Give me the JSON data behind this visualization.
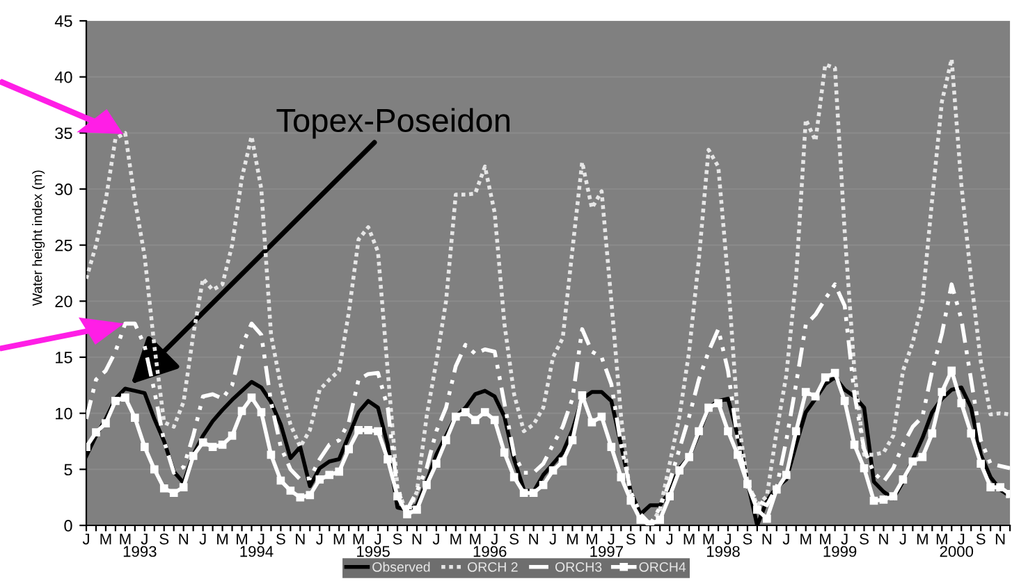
{
  "chart_data": {
    "type": "line",
    "ylabel": "Water height index (m)",
    "categories": [
      "J",
      null,
      "M",
      null,
      "M",
      null,
      "J",
      null,
      "S",
      null,
      "N",
      null,
      "J",
      null,
      "M",
      null,
      "M",
      null,
      "J",
      null,
      "S",
      null,
      "N",
      null,
      "J",
      null,
      "M",
      null,
      "M",
      null,
      "J",
      null,
      "S",
      null,
      "N",
      null,
      "J",
      null,
      "M",
      null,
      "M",
      null,
      "J",
      null,
      "S",
      null,
      "N",
      null,
      "J",
      null,
      "M",
      null,
      "M",
      null,
      "J",
      null,
      "S",
      null,
      "N",
      null,
      "J",
      null,
      "M",
      null,
      "M",
      null,
      "J",
      null,
      "S",
      null,
      "N",
      null,
      "J",
      null,
      "M",
      null,
      "M",
      null,
      "J",
      null,
      "S",
      null,
      "N",
      null,
      "J",
      null,
      "M",
      null,
      "M",
      null,
      "J",
      null,
      "S",
      null,
      "N",
      null
    ],
    "series": [
      {
        "name": "Observed",
        "color": "#000000",
        "line_style": "solid",
        "marker": "none",
        "values": [
          6.2,
          8,
          9.5,
          11.3,
          12.2,
          12,
          11.8,
          9.5,
          7.5,
          4.8,
          3.8,
          6.3,
          8,
          9.3,
          10.3,
          11.2,
          12,
          12.8,
          12.3,
          11,
          9,
          6,
          7,
          3.5,
          5.1,
          5.7,
          5.9,
          8,
          10.1,
          11.1,
          10.5,
          7.2,
          1.6,
          1.4,
          1.8,
          3.9,
          6.3,
          8,
          9.7,
          10.5,
          11.7,
          12,
          11.5,
          9.7,
          5.9,
          3.2,
          3,
          4.5,
          5.5,
          6.5,
          8.5,
          11.3,
          11.9,
          11.9,
          11.1,
          7.2,
          3,
          1,
          1.8,
          1.8,
          3,
          5.1,
          6.1,
          8.2,
          10.5,
          11.1,
          11.3,
          8,
          3.9,
          0,
          2.2,
          3.4,
          4.1,
          7.2,
          10.1,
          11.3,
          12.6,
          13.2,
          12.1,
          11.5,
          10.5,
          3.9,
          3,
          2.4,
          3.9,
          5.9,
          7.8,
          10.1,
          11.3,
          12.1,
          12.3,
          10.5,
          6.3,
          4.3,
          3.2,
          2.6
        ]
      },
      {
        "name": "ORCH 2",
        "color": "#e6e6e6",
        "line_style": "dotted",
        "marker": "none",
        "values": [
          22,
          25,
          29,
          34.5,
          35,
          29,
          24,
          16,
          9.2,
          8.8,
          11,
          17,
          22,
          21,
          21.5,
          25,
          31,
          34.7,
          30,
          17,
          12.5,
          9,
          7,
          8.5,
          12.1,
          13,
          13.8,
          19,
          25.5,
          26.6,
          24.4,
          13.8,
          3.4,
          0.9,
          3,
          9.7,
          14.6,
          20,
          29.5,
          29.5,
          29.6,
          32,
          27.9,
          18,
          11.7,
          8.4,
          9,
          10.5,
          15,
          16.7,
          24.6,
          32.4,
          28.3,
          29.8,
          20,
          9.7,
          2.2,
          0.5,
          0,
          1.4,
          5.5,
          9.7,
          15.5,
          23.7,
          33.5,
          32,
          22,
          9.7,
          3.9,
          1.8,
          2.6,
          8.4,
          13.4,
          22,
          36.2,
          34.3,
          41.1,
          40.8,
          26.2,
          13.8,
          6.3,
          6.3,
          6.5,
          8,
          13.8,
          16.3,
          20,
          29.1,
          37.8,
          41.6,
          30.4,
          22,
          14.6,
          9.9,
          10,
          9.9
        ]
      },
      {
        "name": "ORCH3",
        "color": "#ffffff",
        "line_style": "dashed",
        "marker": "none",
        "values": [
          9.5,
          13,
          13.8,
          15.5,
          18,
          18,
          16,
          12,
          7.5,
          4.7,
          5.2,
          8,
          11.5,
          11.7,
          11.3,
          12.5,
          16,
          18,
          17,
          11,
          7,
          5,
          4.1,
          4.2,
          5.9,
          7.2,
          7.6,
          9.2,
          13,
          13.5,
          13.6,
          10.5,
          3,
          1.4,
          3,
          5.1,
          8.4,
          10.5,
          14.2,
          16.1,
          15.3,
          15.7,
          15.5,
          10.9,
          6.3,
          4.7,
          4.7,
          5.5,
          7.2,
          8.8,
          11.3,
          17.5,
          15.5,
          15,
          12.6,
          7.2,
          3,
          1,
          0.1,
          1.6,
          3.9,
          6.8,
          9.7,
          13,
          15.5,
          17.5,
          13.8,
          7.6,
          3.4,
          2.2,
          1.8,
          3.4,
          7.6,
          12.6,
          17.9,
          18.8,
          20.2,
          21.5,
          19.6,
          11.7,
          6.8,
          4.7,
          3.9,
          5.1,
          7.2,
          8.8,
          9.7,
          13.8,
          17.1,
          21.5,
          18.4,
          13,
          7.6,
          5.5,
          5.3,
          5.1
        ]
      },
      {
        "name": "ORCH4",
        "color": "#ffffff",
        "line_style": "solid",
        "marker": "square",
        "values": [
          7,
          8.3,
          9.1,
          11.1,
          11.4,
          9.6,
          7,
          5,
          3.3,
          2.9,
          3.4,
          6.2,
          7.4,
          7,
          7.2,
          8,
          10.2,
          11.4,
          10.1,
          6.3,
          4,
          3.1,
          2.5,
          2.7,
          4.1,
          4.5,
          4.8,
          6.8,
          8.5,
          8.5,
          8.4,
          5.9,
          2.6,
          1,
          1.4,
          3.6,
          5.5,
          7.6,
          9.7,
          10.1,
          9.4,
          10.1,
          9.4,
          6.5,
          4.3,
          2.9,
          2.9,
          3.6,
          4.9,
          5.7,
          7.6,
          11.6,
          9.2,
          9.7,
          7,
          4.3,
          2.2,
          0.5,
          0.1,
          0.5,
          2.6,
          4.9,
          6.1,
          8.4,
          10.5,
          10.9,
          8.4,
          6.3,
          3.7,
          1.4,
          0.6,
          3.2,
          4.5,
          8.4,
          11.9,
          11.5,
          13.2,
          13.6,
          11.1,
          7.2,
          5.1,
          2.2,
          2.3,
          2.6,
          4.1,
          5.7,
          6.1,
          8.2,
          11.9,
          13.8,
          10.9,
          8.2,
          5.5,
          3.4,
          3.4,
          2.8
        ]
      }
    ],
    "annotations": [
      "Topex-Poseidon",
      "1993",
      "1994",
      "1995",
      "1996",
      "1997",
      "1998",
      "1999",
      "2000"
    ],
    "ylim": [
      0,
      45
    ],
    "yticks": [
      0,
      5,
      10,
      15,
      20,
      25,
      30,
      35,
      40,
      45
    ],
    "grid": "y",
    "legend": "bottom"
  }
}
